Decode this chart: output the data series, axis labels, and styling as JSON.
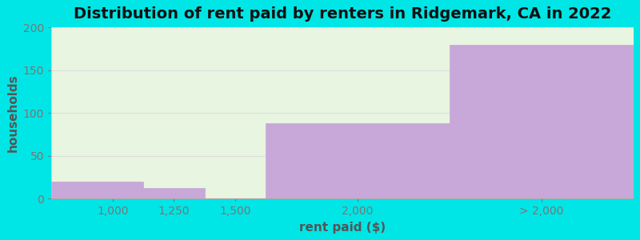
{
  "title": "Distribution of rent paid by renters in Ridgemark, CA in 2022",
  "xlabel": "rent paid ($)",
  "ylabel": "households",
  "xtick_labels": [
    "1,000",
    "1,250",
    "1,500",
    "2,000",
    "> 2,000"
  ],
  "xtick_positions": [
    1,
    2,
    3,
    5,
    8
  ],
  "bar_lefts": [
    0,
    1.5,
    2.5,
    3.5,
    6.5
  ],
  "bar_widths": [
    1.5,
    1.0,
    1.0,
    3.0,
    3.0
  ],
  "bar_values": [
    20,
    12,
    0,
    88,
    180
  ],
  "bar_color": "#c8a8d8",
  "ylim": [
    0,
    200
  ],
  "yticks": [
    0,
    50,
    100,
    150,
    200
  ],
  "xlim": [
    0,
    9.5
  ],
  "background_outer": "#00e5e5",
  "background_inner_top": "#e8f5e0",
  "background_inner_bottom": "#dff0e8",
  "title_fontsize": 14,
  "axis_label_fontsize": 11,
  "tick_fontsize": 10,
  "grid_color": "#dddddd"
}
